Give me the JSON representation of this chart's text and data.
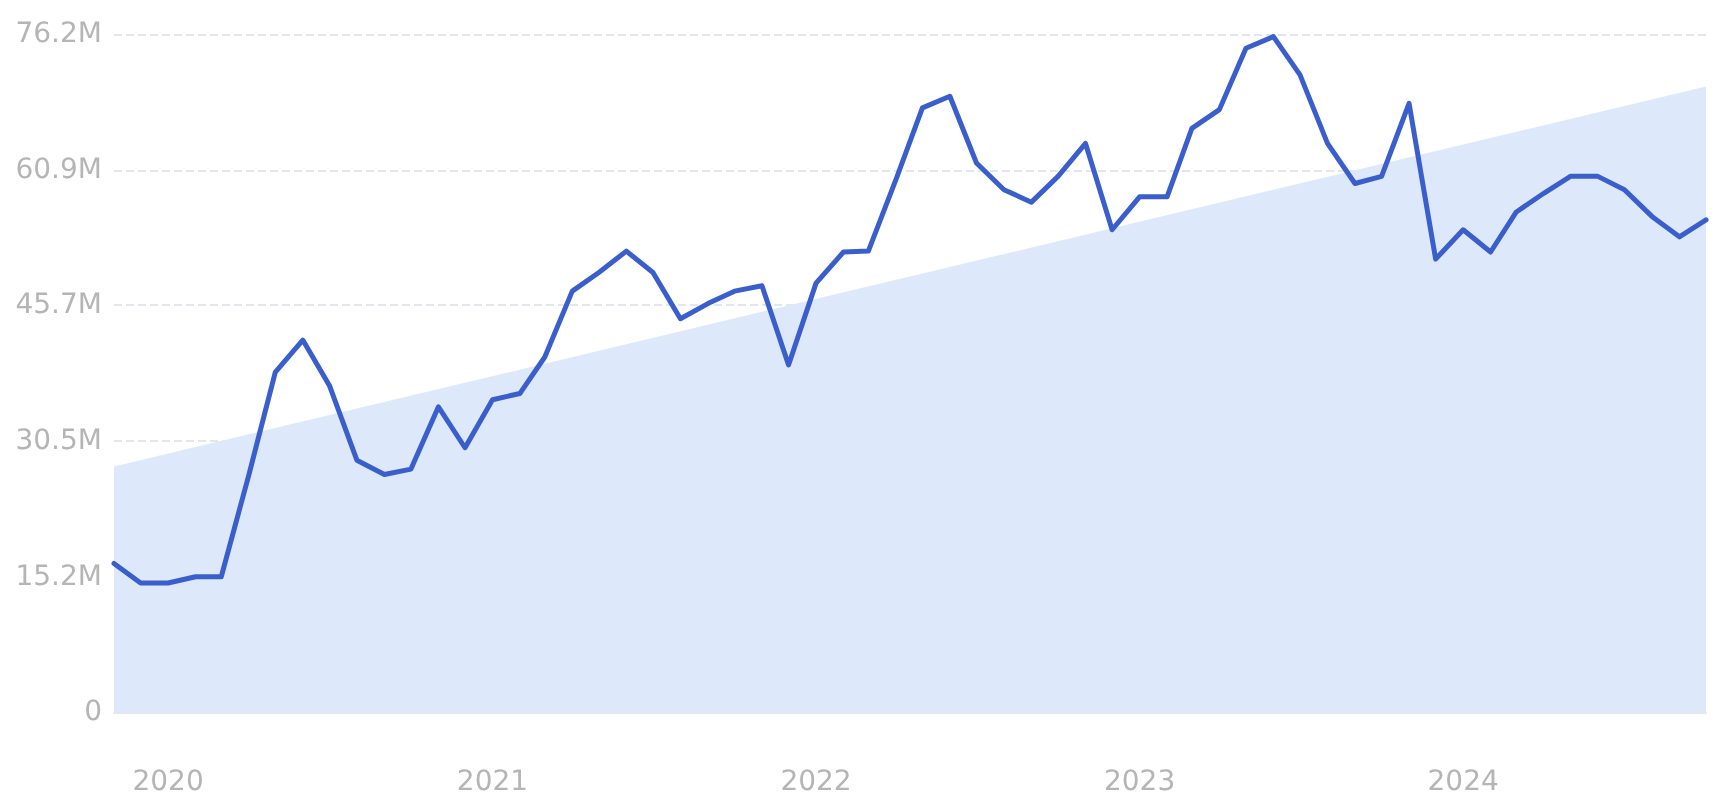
{
  "chart_data": {
    "type": "line",
    "x": [
      "2019-11",
      "2019-12",
      "2020-01",
      "2020-02",
      "2020-03",
      "2020-04",
      "2020-05",
      "2020-06",
      "2020-07",
      "2020-08",
      "2020-09",
      "2020-10",
      "2020-11",
      "2020-12",
      "2021-01",
      "2021-02",
      "2021-03",
      "2021-04",
      "2021-05",
      "2021-06",
      "2021-07",
      "2021-08",
      "2021-09",
      "2021-10",
      "2021-11",
      "2021-12",
      "2022-01",
      "2022-02",
      "2022-03",
      "2022-04",
      "2022-05",
      "2022-06",
      "2022-07",
      "2022-08",
      "2022-09",
      "2022-10",
      "2022-11",
      "2022-12",
      "2023-01",
      "2023-02",
      "2023-03",
      "2023-04",
      "2023-05",
      "2023-06",
      "2023-07",
      "2023-08",
      "2023-09",
      "2023-10",
      "2023-11",
      "2023-12",
      "2024-01",
      "2024-02",
      "2024-03",
      "2024-04",
      "2024-05",
      "2024-06",
      "2024-07",
      "2024-08",
      "2024-09",
      "2024-10"
    ],
    "series": [
      {
        "type": "area",
        "color": "#dde9fb",
        "x": [
          "2019-11",
          "2024-10"
        ],
        "values": [
          27.6,
          70.3
        ]
      },
      {
        "color": "#3a5fcd",
        "values": [
          16.7,
          14.5,
          14.5,
          15.2,
          15.2,
          26.6,
          38.2,
          41.8,
          36.7,
          28.3,
          26.7,
          27.3,
          34.3,
          29.7,
          35.1,
          35.8,
          39.9,
          47.3,
          49.4,
          51.8,
          49.4,
          44.2,
          45.9,
          47.3,
          47.9,
          39.0,
          48.2,
          51.7,
          51.8,
          59.8,
          67.9,
          69.2,
          61.7,
          58.7,
          57.3,
          60.2,
          63.9,
          54.2,
          57.9,
          57.9,
          65.6,
          67.7,
          74.6,
          75.9,
          71.6,
          63.9,
          59.4,
          60.2,
          68.4,
          50.9,
          54.2,
          51.7,
          56.2,
          58.3,
          60.2,
          60.2,
          58.7,
          55.7,
          53.4,
          55.3
        ]
      }
    ],
    "xlim": [
      "2019-11",
      "2024-10"
    ],
    "xticks": [
      "2020",
      "2021",
      "2022",
      "2023",
      "2024"
    ],
    "ylim": [
      0,
      76.2
    ],
    "yticks": [
      0,
      {
        "value": 15.2,
        "label": "15.2M"
      },
      {
        "value": 30.5,
        "label": "30.5M"
      },
      {
        "value": 45.7,
        "label": "45.7M"
      },
      {
        "value": 60.9,
        "label": "60.9M"
      },
      {
        "value": 76.2,
        "label": "76.2M"
      }
    ],
    "grid": "y",
    "marker": "none",
    "line_style": "solid"
  }
}
